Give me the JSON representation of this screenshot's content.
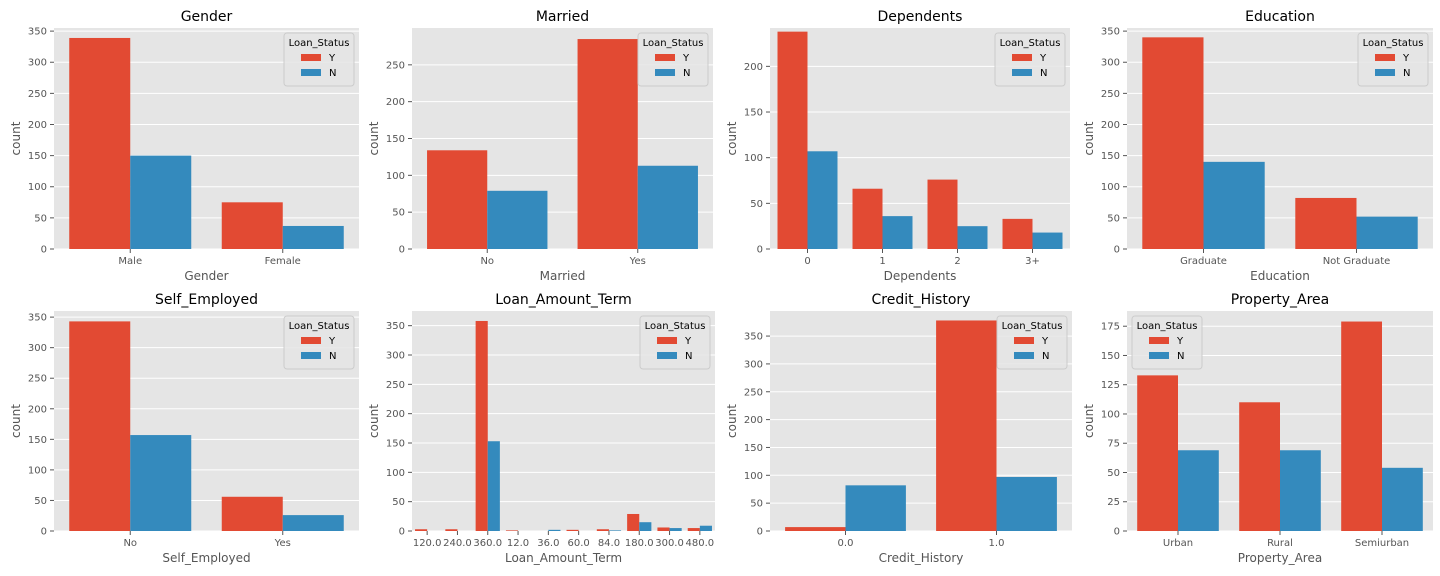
{
  "colors": {
    "background": "#E5E5E5",
    "grid": "#FFFFFF",
    "Y": "#E24A33",
    "N": "#348ABD"
  },
  "chart_data": [
    {
      "type": "bar",
      "title": "Gender",
      "xlabel": "Gender",
      "ylabel": "count",
      "categories": [
        "Male",
        "Female"
      ],
      "ylim": [
        0,
        355
      ],
      "yticks": [
        "0",
        "50",
        "100",
        "150",
        "200",
        "250",
        "300",
        "350"
      ],
      "ytick_values": [
        0,
        50,
        100,
        150,
        200,
        250,
        300,
        350
      ],
      "legend": {
        "title": "Loan_Status",
        "position": "top-right"
      },
      "series": [
        {
          "name": "Y",
          "values": [
            339,
            75
          ]
        },
        {
          "name": "N",
          "values": [
            150,
            37
          ]
        }
      ]
    },
    {
      "type": "bar",
      "title": "Married",
      "xlabel": "Married",
      "ylabel": "count",
      "categories": [
        "No",
        "Yes"
      ],
      "ylim": [
        0,
        300
      ],
      "yticks": [
        "0",
        "50",
        "100",
        "150",
        "200",
        "250"
      ],
      "ytick_values": [
        0,
        50,
        100,
        150,
        200,
        250
      ],
      "legend": {
        "title": "Loan_Status",
        "position": "top-right"
      },
      "series": [
        {
          "name": "Y",
          "values": [
            134,
            285
          ]
        },
        {
          "name": "N",
          "values": [
            79,
            113
          ]
        }
      ]
    },
    {
      "type": "bar",
      "title": "Dependents",
      "xlabel": "Dependents",
      "ylabel": "count",
      "categories": [
        "0",
        "1",
        "2",
        "3+"
      ],
      "ylim": [
        0,
        242
      ],
      "yticks": [
        "0",
        "50",
        "100",
        "150",
        "200"
      ],
      "ytick_values": [
        0,
        50,
        100,
        150,
        200
      ],
      "legend": {
        "title": "Loan_Status",
        "position": "top-right"
      },
      "series": [
        {
          "name": "Y",
          "values": [
            238,
            66,
            76,
            33
          ]
        },
        {
          "name": "N",
          "values": [
            107,
            36,
            25,
            18
          ]
        }
      ]
    },
    {
      "type": "bar",
      "title": "Education",
      "xlabel": "Education",
      "ylabel": "count",
      "categories": [
        "Graduate",
        "Not Graduate"
      ],
      "ylim": [
        0,
        355
      ],
      "yticks": [
        "0",
        "50",
        "100",
        "150",
        "200",
        "250",
        "300",
        "350"
      ],
      "ytick_values": [
        0,
        50,
        100,
        150,
        200,
        250,
        300,
        350
      ],
      "legend": {
        "title": "Loan_Status",
        "position": "top-right"
      },
      "series": [
        {
          "name": "Y",
          "values": [
            340,
            82
          ]
        },
        {
          "name": "N",
          "values": [
            140,
            52
          ]
        }
      ]
    },
    {
      "type": "bar",
      "title": "Self_Employed",
      "xlabel": "Self_Employed",
      "ylabel": "count",
      "categories": [
        "No",
        "Yes"
      ],
      "ylim": [
        0,
        360
      ],
      "yticks": [
        "0",
        "50",
        "100",
        "150",
        "200",
        "250",
        "300",
        "350"
      ],
      "ytick_values": [
        0,
        50,
        100,
        150,
        200,
        250,
        300,
        350
      ],
      "legend": {
        "title": "Loan_Status",
        "position": "top-right"
      },
      "series": [
        {
          "name": "Y",
          "values": [
            343,
            56
          ]
        },
        {
          "name": "N",
          "values": [
            157,
            26
          ]
        }
      ]
    },
    {
      "type": "bar",
      "title": "Loan_Amount_Term",
      "xlabel": "Loan_Amount_Term",
      "ylabel": "count",
      "categories": [
        "120.0",
        "240.0",
        "360.0",
        "12.0",
        "36.0",
        "60.0",
        "84.0",
        "180.0",
        "300.0",
        "480.0"
      ],
      "ylim": [
        0,
        375
      ],
      "yticks": [
        "0",
        "50",
        "100",
        "150",
        "200",
        "250",
        "300",
        "350"
      ],
      "ytick_values": [
        0,
        50,
        100,
        150,
        200,
        250,
        300,
        350
      ],
      "legend": {
        "title": "Loan_Status",
        "position": "top-right"
      },
      "series": [
        {
          "name": "Y",
          "values": [
            3,
            3,
            358,
            1,
            0,
            2,
            3,
            29,
            6,
            5
          ]
        },
        {
          "name": "N",
          "values": [
            0,
            0,
            153,
            0,
            2,
            0,
            1,
            15,
            5,
            9
          ]
        }
      ]
    },
    {
      "type": "bar",
      "title": "Credit_History",
      "xlabel": "Credit_History",
      "ylabel": "count",
      "categories": [
        "0.0",
        "1.0"
      ],
      "ylim": [
        0,
        395
      ],
      "yticks": [
        "0",
        "50",
        "100",
        "150",
        "200",
        "250",
        "300",
        "350"
      ],
      "ytick_values": [
        0,
        50,
        100,
        150,
        200,
        250,
        300,
        350
      ],
      "legend": {
        "title": "Loan_Status",
        "position": "top-right"
      },
      "series": [
        {
          "name": "Y",
          "values": [
            7,
            378
          ]
        },
        {
          "name": "N",
          "values": [
            82,
            97
          ]
        }
      ]
    },
    {
      "type": "bar",
      "title": "Property_Area",
      "xlabel": "Property_Area",
      "ylabel": "count",
      "categories": [
        "Urban",
        "Rural",
        "Semiurban"
      ],
      "ylim": [
        0,
        188
      ],
      "yticks": [
        "0",
        "25",
        "50",
        "75",
        "100",
        "125",
        "150",
        "175"
      ],
      "ytick_values": [
        0,
        25,
        50,
        75,
        100,
        125,
        150,
        175
      ],
      "legend": {
        "title": "Loan_Status",
        "position": "top-left"
      },
      "series": [
        {
          "name": "Y",
          "values": [
            133,
            110,
            179
          ]
        },
        {
          "name": "N",
          "values": [
            69,
            69,
            54
          ]
        }
      ]
    }
  ]
}
